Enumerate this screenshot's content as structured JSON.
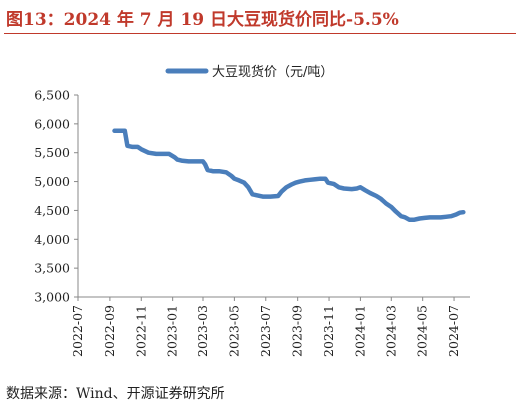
{
  "title": "图13：2024 年 7 月 19 日大豆现货价同比-5.5%",
  "source": "数据来源：Wind、开源证券研究所",
  "colors": {
    "accent": "#c0392b",
    "line": "#4a7ebb",
    "axis": "#888888"
  },
  "chart_data": {
    "type": "line",
    "title": "",
    "xlabel": "",
    "ylabel": "",
    "ylim": [
      3000,
      6500
    ],
    "yticks": [
      "3,000",
      "3,500",
      "4,000",
      "4,500",
      "5,000",
      "5,500",
      "6,000",
      "6,500"
    ],
    "xlim": [
      "2022-07",
      "2024-08"
    ],
    "xticks": [
      "2022-07",
      "2022-09",
      "2022-11",
      "2023-01",
      "2023-03",
      "2023-05",
      "2023-07",
      "2023-09",
      "2023-11",
      "2024-01",
      "2024-03",
      "2024-05",
      "2024-07"
    ],
    "grid": false,
    "legend": "top-center",
    "series": [
      {
        "name": "大豆现货价（元/吨）",
        "x": [
          "2022-09-10",
          "2022-09-25",
          "2022-09-30",
          "2022-10-05",
          "2022-10-15",
          "2022-10-25",
          "2022-11-01",
          "2022-11-15",
          "2022-11-30",
          "2022-12-05",
          "2022-12-15",
          "2022-12-25",
          "2023-01-05",
          "2023-01-10",
          "2023-01-20",
          "2023-02-01",
          "2023-02-15",
          "2023-03-01",
          "2023-03-05",
          "2023-03-10",
          "2023-03-20",
          "2023-04-01",
          "2023-04-15",
          "2023-04-25",
          "2023-05-01",
          "2023-05-10",
          "2023-05-20",
          "2023-05-28",
          "2023-06-05",
          "2023-06-15",
          "2023-06-25",
          "2023-07-10",
          "2023-07-25",
          "2023-08-01",
          "2023-08-10",
          "2023-08-20",
          "2023-08-28",
          "2023-09-05",
          "2023-09-15",
          "2023-09-25",
          "2023-10-05",
          "2023-10-15",
          "2023-10-25",
          "2023-10-30",
          "2023-11-10",
          "2023-11-20",
          "2023-11-30",
          "2023-12-15",
          "2023-12-25",
          "2024-01-01",
          "2024-01-10",
          "2024-01-20",
          "2024-02-01",
          "2024-02-10",
          "2024-02-20",
          "2024-03-01",
          "2024-03-10",
          "2024-03-20",
          "2024-03-28",
          "2024-04-05",
          "2024-04-15",
          "2024-04-25",
          "2024-05-05",
          "2024-05-15",
          "2024-05-25",
          "2024-06-05",
          "2024-06-15",
          "2024-06-25",
          "2024-07-05",
          "2024-07-12",
          "2024-07-19"
        ],
        "values": [
          5880,
          5880,
          5880,
          5620,
          5600,
          5600,
          5560,
          5500,
          5480,
          5480,
          5480,
          5480,
          5420,
          5380,
          5360,
          5350,
          5350,
          5350,
          5300,
          5200,
          5180,
          5180,
          5160,
          5100,
          5050,
          5020,
          4980,
          4900,
          4780,
          4760,
          4740,
          4740,
          4750,
          4830,
          4900,
          4950,
          4980,
          5000,
          5020,
          5030,
          5040,
          5050,
          5050,
          4980,
          4960,
          4900,
          4880,
          4870,
          4880,
          4900,
          4850,
          4800,
          4750,
          4700,
          4620,
          4560,
          4480,
          4400,
          4380,
          4340,
          4340,
          4360,
          4370,
          4380,
          4380,
          4380,
          4390,
          4400,
          4430,
          4460,
          4470
        ]
      }
    ]
  }
}
